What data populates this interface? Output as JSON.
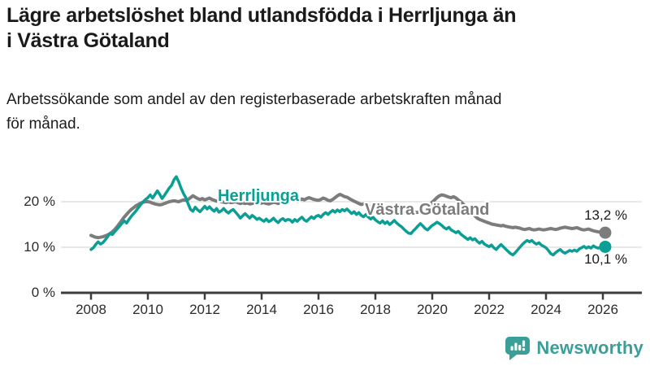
{
  "header": {
    "title_line1": "Lägre arbetslöshet bland utlandsfödda i Herrljunga än",
    "title_line2": "i Västra Götaland",
    "subtitle_line1": "Arbetssökande som andel av den registerbaserade arbetskraften månad",
    "subtitle_line2": "för månad."
  },
  "branding": {
    "logo_text": "Newsworthy",
    "logo_color": "#3b9e98"
  },
  "colors": {
    "accent_teal": "#0a9e94",
    "line_gray": "#7c7c7c",
    "grid": "#dadada",
    "axis": "#3d3d3d"
  },
  "chart_data": {
    "type": "line",
    "unit": "%",
    "x_start_year": 2008.0,
    "x_step_years": 0.08333,
    "xticks": [
      2008,
      2010,
      2012,
      2014,
      2016,
      2018,
      2020,
      2022,
      2024,
      2026
    ],
    "yticks": [
      0,
      10,
      20
    ],
    "ytick_labels": [
      "0 %",
      "10 %",
      "20 %"
    ],
    "ylim": [
      0,
      27
    ],
    "xlim": [
      2007.5,
      2026.5
    ],
    "grid": "horizontal-only",
    "legend": "inline-labels-on-lines",
    "series": [
      {
        "name": "Herrljunga",
        "color": "#0a9e94",
        "end_label": "10,1 %",
        "end_value": 10.1,
        "values": [
          9.5,
          9.9,
          10.6,
          11.2,
          10.7,
          11.0,
          11.6,
          12.3,
          13.0,
          12.8,
          13.4,
          14.0,
          14.6,
          15.2,
          15.8,
          15.3,
          16.1,
          16.8,
          17.4,
          18.0,
          18.7,
          19.4,
          20.0,
          20.5,
          20.9,
          21.5,
          20.8,
          21.6,
          22.4,
          21.6,
          20.7,
          21.4,
          22.2,
          23.0,
          23.6,
          24.8,
          25.5,
          24.4,
          23.0,
          21.8,
          20.9,
          19.5,
          18.3,
          17.9,
          18.8,
          18.2,
          17.8,
          18.4,
          19.0,
          18.4,
          18.9,
          18.3,
          17.9,
          18.5,
          17.7,
          18.0,
          18.5,
          17.9,
          17.5,
          18.0,
          18.3,
          17.7,
          17.1,
          16.4,
          16.9,
          17.4,
          16.9,
          16.4,
          17.0,
          16.6,
          16.1,
          16.4,
          16.0,
          15.7,
          16.2,
          15.6,
          15.9,
          16.4,
          15.8,
          15.4,
          16.0,
          16.3,
          15.8,
          16.1,
          16.0,
          15.5,
          16.1,
          15.7,
          16.2,
          16.6,
          16.0,
          15.7,
          16.2,
          16.7,
          16.3,
          16.8,
          17.0,
          16.6,
          17.2,
          17.6,
          17.2,
          17.7,
          18.1,
          17.7,
          18.2,
          17.8,
          18.3,
          18.0,
          18.4,
          17.9,
          17.4,
          17.8,
          17.2,
          17.6,
          17.0,
          16.7,
          17.2,
          16.6,
          16.2,
          16.6,
          16.0,
          15.6,
          15.3,
          15.8,
          15.2,
          15.6,
          15.0,
          15.4,
          15.9,
          15.3,
          14.9,
          14.5,
          14.0,
          13.5,
          13.1,
          13.0,
          13.6,
          14.1,
          14.7,
          15.2,
          14.7,
          14.1,
          13.8,
          14.3,
          14.8,
          15.1,
          15.5,
          15.2,
          14.8,
          14.3,
          14.0,
          14.4,
          13.8,
          13.5,
          13.2,
          13.5,
          12.9,
          12.5,
          12.1,
          11.7,
          12.1,
          11.6,
          11.9,
          11.3,
          10.9,
          11.3,
          10.7,
          10.4,
          10.1,
          10.5,
          9.9,
          9.5,
          10.1,
          10.6,
          10.1,
          9.6,
          9.1,
          8.6,
          8.3,
          8.8,
          9.4,
          10.0,
          10.6,
          11.1,
          11.5,
          11.2,
          11.5,
          11.0,
          10.7,
          11.0,
          10.5,
          10.2,
          9.9,
          9.3,
          8.6,
          8.3,
          8.8,
          9.2,
          9.5,
          9.0,
          8.7,
          9.0,
          9.3,
          9.1,
          9.4,
          9.1,
          9.6,
          9.9,
          10.2,
          9.8,
          10.1,
          9.8,
          10.3,
          10.0,
          9.8,
          10.0,
          10.0,
          10.1
        ]
      },
      {
        "name": "Västra Götaland",
        "color": "#7c7c7c",
        "end_label": "13,2 %",
        "end_value": 13.2,
        "values": [
          12.6,
          12.4,
          12.2,
          12.1,
          12.2,
          12.3,
          12.5,
          12.7,
          13.0,
          13.4,
          13.9,
          14.5,
          15.2,
          15.9,
          16.6,
          17.2,
          17.8,
          18.3,
          18.7,
          19.1,
          19.4,
          19.7,
          19.9,
          20.0,
          20.0,
          19.9,
          19.7,
          19.5,
          19.4,
          19.3,
          19.4,
          19.6,
          19.8,
          20.0,
          20.1,
          20.2,
          20.1,
          20.0,
          20.2,
          20.4,
          20.3,
          20.5,
          20.9,
          21.3,
          21.0,
          20.7,
          20.5,
          20.7,
          20.4,
          20.6,
          20.8,
          20.5,
          20.3,
          20.1,
          20.3,
          20.0,
          19.9,
          19.8,
          20.0,
          19.8,
          19.9,
          20.0,
          19.8,
          19.6,
          19.8,
          19.6,
          19.7,
          19.5,
          19.6,
          19.7,
          19.5,
          19.6,
          19.7,
          19.8,
          19.6,
          19.5,
          19.7,
          19.9,
          19.8,
          19.6,
          19.8,
          20.0,
          19.9,
          20.1,
          20.3,
          20.5,
          20.3,
          20.1,
          20.4,
          20.6,
          20.4,
          20.7,
          20.9,
          20.7,
          20.5,
          20.4,
          20.3,
          20.5,
          20.8,
          20.6,
          20.3,
          20.2,
          20.5,
          20.9,
          21.3,
          21.6,
          21.4,
          21.1,
          21.0,
          20.7,
          20.4,
          20.1,
          19.9,
          19.6,
          19.4,
          19.5,
          19.3,
          19.1,
          18.9,
          18.7,
          18.6,
          18.4,
          18.2,
          18.0,
          17.9,
          17.8,
          17.7,
          17.8,
          17.9,
          18.0,
          17.9,
          17.8,
          17.7,
          17.6,
          17.5,
          17.4,
          17.5,
          17.6,
          17.7,
          17.9,
          18.1,
          18.4,
          18.8,
          19.3,
          19.9,
          20.4,
          20.9,
          21.3,
          21.5,
          21.4,
          21.2,
          21.0,
          20.9,
          21.1,
          20.8,
          20.4,
          20.0,
          19.5,
          19.0,
          18.4,
          17.9,
          17.4,
          16.9,
          16.4,
          16.1,
          15.9,
          15.7,
          15.5,
          15.3,
          15.1,
          15.0,
          14.9,
          14.8,
          14.7,
          14.8,
          14.6,
          14.5,
          14.4,
          14.3,
          14.4,
          14.3,
          14.2,
          14.0,
          13.9,
          14.0,
          14.1,
          13.9,
          13.8,
          13.9,
          14.0,
          13.9,
          13.8,
          13.9,
          14.0,
          14.1,
          14.0,
          13.9,
          14.0,
          14.2,
          14.3,
          14.4,
          14.3,
          14.2,
          14.1,
          14.2,
          14.3,
          14.1,
          13.9,
          13.8,
          13.9,
          14.0,
          13.8,
          13.6,
          13.5,
          13.4,
          13.3,
          13.3,
          13.2
        ]
      }
    ]
  }
}
